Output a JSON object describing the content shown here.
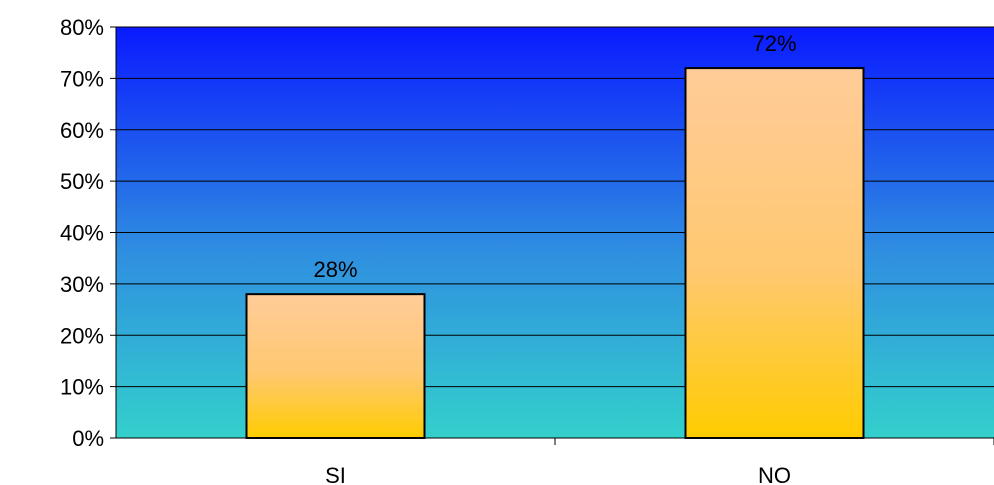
{
  "chart_data": {
    "type": "bar",
    "categories": [
      "SI",
      "NO"
    ],
    "values": [
      28,
      72
    ],
    "value_labels": [
      "28%",
      "72%"
    ],
    "ylim": [
      0,
      80
    ],
    "yticks": [
      0,
      10,
      20,
      30,
      40,
      50,
      60,
      70,
      80
    ],
    "ytick_labels": [
      "0%",
      "10%",
      "20%",
      "30%",
      "40%",
      "50%",
      "60%",
      "70%",
      "80%"
    ],
    "grid": true,
    "legend": "none",
    "colors": {
      "background_top": "#0a1aff",
      "background_bottom": "#33d0cc",
      "bar_top": "#ffcc99",
      "bar_bottom": "#ffcc00",
      "bar_stroke": "#000000",
      "gridline": "#000000"
    }
  }
}
